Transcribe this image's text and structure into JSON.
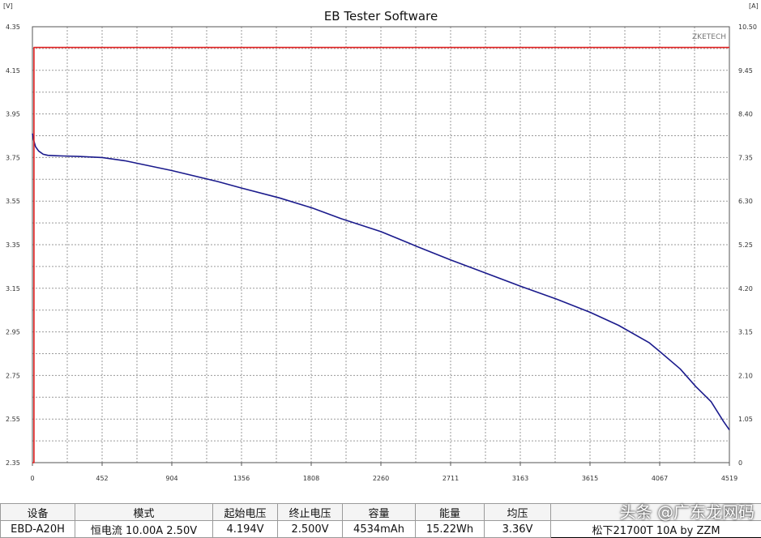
{
  "chart_data": {
    "type": "line",
    "title": "EB Tester Software",
    "left_unit": "[V]",
    "right_unit": "[A]",
    "brand": "ZKETECH",
    "x_ticks": [
      "0",
      "452",
      "904",
      "1356",
      "1808",
      "2260",
      "2711",
      "3163",
      "3615",
      "4067",
      "4519"
    ],
    "y_ticks_left": [
      "2.35",
      "2.55",
      "2.75",
      "2.95",
      "3.15",
      "3.35",
      "3.55",
      "3.75",
      "3.95",
      "4.15",
      "4.35"
    ],
    "y_ticks_right": [
      "0",
      "1.05",
      "2.10",
      "3.15",
      "4.20",
      "5.25",
      "6.30",
      "7.35",
      "8.40",
      "9.45",
      "10.50"
    ],
    "xlim": [
      0,
      4519
    ],
    "ylim_left": [
      2.35,
      4.35
    ],
    "ylim_right": [
      0,
      10.5
    ],
    "grid": true,
    "series": [
      {
        "axis": "left",
        "color": "#1a1a8c",
        "x": [
          0,
          8,
          20,
          40,
          70,
          100,
          150,
          200,
          300,
          452,
          600,
          904,
          1200,
          1356,
          1600,
          1808,
          2000,
          2260,
          2500,
          2711,
          2900,
          3163,
          3400,
          3615,
          3800,
          4000,
          4067,
          4200,
          4300,
          4400,
          4480,
          4519
        ],
        "y": [
          3.86,
          3.83,
          3.8,
          3.78,
          3.765,
          3.76,
          3.758,
          3.757,
          3.755,
          3.75,
          3.735,
          3.69,
          3.64,
          3.61,
          3.565,
          3.52,
          3.47,
          3.41,
          3.34,
          3.28,
          3.23,
          3.16,
          3.1,
          3.04,
          2.98,
          2.9,
          2.86,
          2.78,
          2.7,
          2.63,
          2.54,
          2.5
        ]
      },
      {
        "axis": "right",
        "color": "#e02020",
        "x": [
          0,
          10,
          10,
          4519
        ],
        "y": [
          0,
          0,
          10.0,
          10.0
        ]
      }
    ]
  },
  "table": {
    "headers": [
      "设备",
      "模式",
      "起始电压",
      "终止电压",
      "容量",
      "能量",
      "均压",
      ""
    ],
    "values": [
      "EBD-A20H",
      "恒电流  10.00A  2.50V",
      "4.194V",
      "2.500V",
      "4534mAh",
      "15.22Wh",
      "3.36V",
      "松下21700T 10A by ZZM"
    ]
  },
  "watermark": "头条 @广东龙网码"
}
